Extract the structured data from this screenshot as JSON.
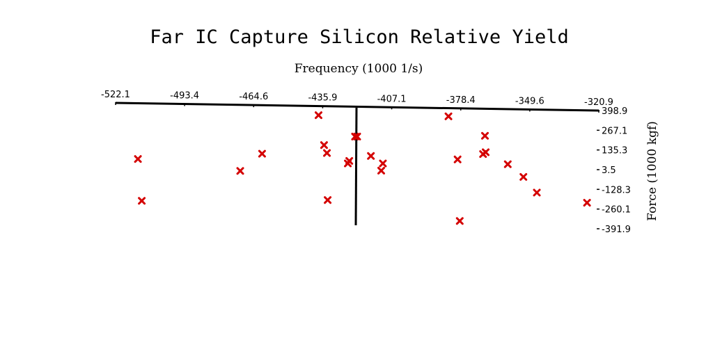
{
  "chart_data": {
    "type": "scatter",
    "title": "Far IC Capture Silicon Relative Yield",
    "xlabel": "Frequency (1000 1/s)",
    "ylabel": "Force (1000 kgf)",
    "x_ticks": [
      "-522.1",
      "-493.4",
      "-464.6",
      "-435.9",
      "-407.1",
      "-378.4",
      "-349.6",
      "-320.9"
    ],
    "y_ticks": [
      "398.9",
      "267.1",
      "135.3",
      "3.5",
      "-128.3",
      "-260.1",
      "-391.9"
    ],
    "xlim": [
      -522.1,
      -320.9
    ],
    "ylim": [
      -391.9,
      398.9
    ],
    "marker": "x",
    "marker_color": "#d40000",
    "series": [
      {
        "points": [
          {
            "x": -512.8,
            "y": 75
          },
          {
            "x": -511.2,
            "y": -205
          },
          {
            "x": -461.1,
            "y": 110
          },
          {
            "x": -470.2,
            "y": -5
          },
          {
            "x": -437.6,
            "y": 368
          },
          {
            "x": -435.3,
            "y": 168
          },
          {
            "x": -434.1,
            "y": 115
          },
          {
            "x": -433.8,
            "y": -200
          },
          {
            "x": -422.4,
            "y": 225
          },
          {
            "x": -421.5,
            "y": 225
          },
          {
            "x": -424.8,
            "y": 62
          },
          {
            "x": -425.4,
            "y": 45
          },
          {
            "x": -415.8,
            "y": 95
          },
          {
            "x": -410.8,
            "y": 45
          },
          {
            "x": -411.5,
            "y": -3
          },
          {
            "x": -383.5,
            "y": 360
          },
          {
            "x": -379.7,
            "y": 72
          },
          {
            "x": -378.8,
            "y": -340
          },
          {
            "x": -368.3,
            "y": 230
          },
          {
            "x": -368.0,
            "y": 120
          },
          {
            "x": -369.1,
            "y": 108
          },
          {
            "x": -358.8,
            "y": 40
          },
          {
            "x": -352.3,
            "y": -45
          },
          {
            "x": -346.7,
            "y": -150
          },
          {
            "x": -325.8,
            "y": -218
          }
        ]
      }
    ]
  }
}
